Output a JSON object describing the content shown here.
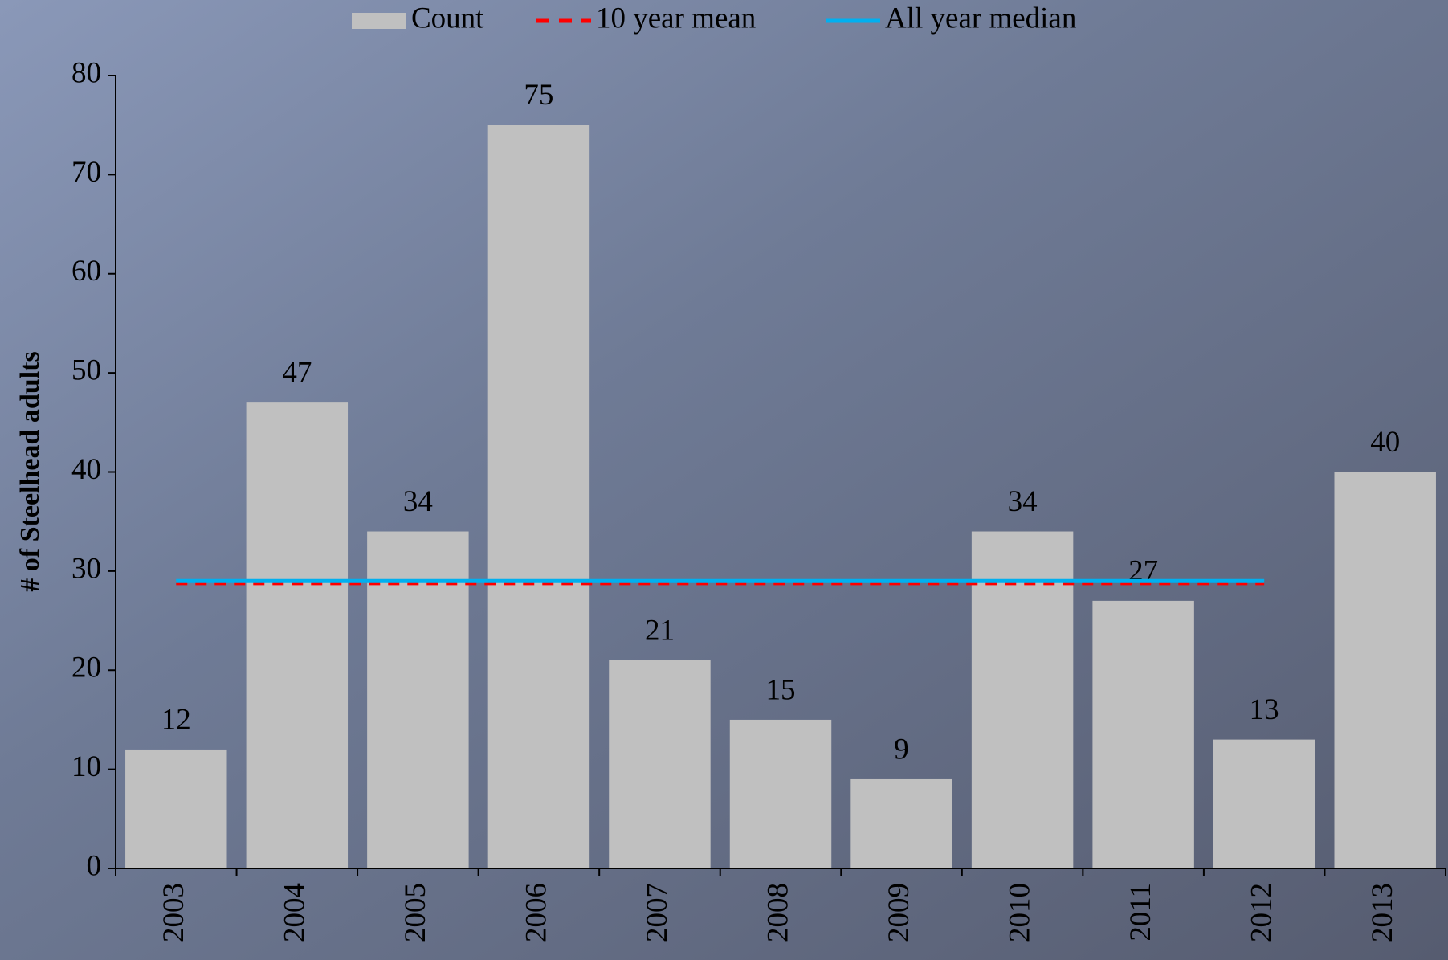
{
  "chart_data": {
    "type": "bar",
    "ylabel": "# of Steelhead adults",
    "categories": [
      "2003",
      "2004",
      "2005",
      "2006",
      "2007",
      "2008",
      "2009",
      "2010",
      "2011",
      "2012",
      "2013"
    ],
    "series": [
      {
        "name": "Count",
        "type": "bar",
        "color": "#c0c0c0",
        "values": [
          12,
          47,
          34,
          75,
          21,
          15,
          9,
          34,
          27,
          13,
          40
        ]
      },
      {
        "name": "10 year mean",
        "type": "line",
        "dashed": true,
        "color": "#ff0000",
        "values": [
          28.7,
          28.7,
          28.7,
          28.7,
          28.7,
          28.7,
          28.7,
          28.7,
          28.7,
          28.7,
          null
        ]
      },
      {
        "name": "All year median",
        "type": "line",
        "color": "#00b0f0",
        "values": [
          29,
          29,
          29,
          29,
          29,
          29,
          29,
          29,
          29,
          29,
          null
        ]
      }
    ],
    "ylim": [
      0,
      80
    ],
    "yticks": [
      0,
      10,
      20,
      30,
      40,
      50,
      60,
      70,
      80
    ],
    "grid": false,
    "legend": "top"
  }
}
